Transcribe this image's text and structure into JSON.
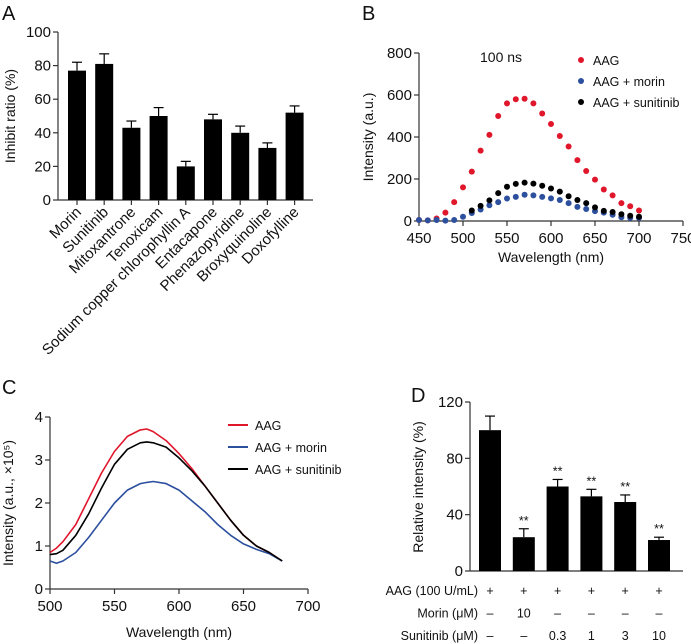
{
  "chart_data": [
    {
      "panel": "A",
      "type": "bar",
      "title": "",
      "xlabel": "",
      "ylabel": "Inhibit ratio (%)",
      "ylim": [
        0,
        100
      ],
      "yticks": [
        0,
        20,
        40,
        60,
        80,
        100
      ],
      "categories": [
        "Morin",
        "Sunitinib",
        "Mitoxantrone",
        "Tenoxicam",
        "Sodium copper chlorophyllin A",
        "Entacapone",
        "Phenazopyridine",
        "Broxyquinoline",
        "Doxofylline"
      ],
      "values": [
        77,
        81,
        43,
        50,
        20,
        48,
        40,
        31,
        52
      ],
      "errors": [
        5,
        6,
        4,
        5,
        3,
        3,
        4,
        3,
        4
      ],
      "color": "#000000"
    },
    {
      "panel": "B",
      "type": "scatter",
      "annotation": "100  ns",
      "xlabel": "Wavelength (nm)",
      "ylabel": "Intensity (a.u.)",
      "xlim": [
        450,
        750
      ],
      "ylim": [
        0,
        800
      ],
      "xticks": [
        450,
        500,
        550,
        600,
        650,
        700,
        750
      ],
      "yticks": [
        0,
        200,
        400,
        600,
        800
      ],
      "legend": "top-right",
      "x": [
        450,
        460,
        470,
        480,
        490,
        500,
        510,
        520,
        530,
        540,
        550,
        560,
        570,
        580,
        590,
        600,
        610,
        620,
        630,
        640,
        650,
        660,
        670,
        680,
        690,
        700
      ],
      "series": [
        {
          "name": "AAG",
          "color": "#e0162b",
          "values": [
            5,
            3,
            12,
            40,
            90,
            160,
            235,
            335,
            410,
            500,
            560,
            580,
            582,
            560,
            512,
            462,
            405,
            355,
            290,
            238,
            197,
            150,
            122,
            85,
            70,
            50
          ]
        },
        {
          "name": "AAG + morin",
          "color": "#2c4f9e",
          "values": [
            5,
            3,
            5,
            2,
            5,
            20,
            38,
            55,
            75,
            90,
            107,
            115,
            125,
            122,
            115,
            108,
            100,
            85,
            67,
            57,
            47,
            40,
            30,
            18,
            15,
            15
          ]
        },
        {
          "name": "AAG + sunitinib",
          "color": "#000000",
          "values": [
            null,
            null,
            null,
            null,
            null,
            null,
            50,
            72,
            98,
            133,
            163,
            177,
            183,
            178,
            168,
            155,
            140,
            118,
            100,
            85,
            65,
            48,
            43,
            32,
            25,
            20
          ]
        }
      ]
    },
    {
      "panel": "C",
      "type": "line",
      "xlabel": "Wavelength (nm)",
      "ylabel": "Intensity (a.u., ×10⁵)",
      "xlim": [
        500,
        700
      ],
      "ylim": [
        0,
        4
      ],
      "xticks": [
        500,
        550,
        600,
        650,
        700
      ],
      "yticks": [
        0,
        1,
        2,
        3,
        4
      ],
      "legend": "top-right",
      "x": [
        500,
        505,
        510,
        520,
        530,
        540,
        550,
        560,
        570,
        575,
        580,
        590,
        600,
        610,
        620,
        630,
        640,
        650,
        660,
        670,
        680
      ],
      "series": [
        {
          "name": "AAG",
          "color": "#e0162b",
          "values": [
            0.85,
            0.95,
            1.1,
            1.5,
            2.1,
            2.7,
            3.2,
            3.55,
            3.7,
            3.72,
            3.66,
            3.45,
            3.15,
            2.8,
            2.4,
            2.0,
            1.6,
            1.25,
            1.0,
            0.85,
            0.65
          ]
        },
        {
          "name": "AAG + morin",
          "color": "#2c4f9e",
          "values": [
            0.65,
            0.6,
            0.65,
            0.85,
            1.2,
            1.6,
            2.0,
            2.3,
            2.45,
            2.48,
            2.5,
            2.45,
            2.3,
            2.05,
            1.8,
            1.5,
            1.25,
            1.05,
            0.92,
            0.82,
            0.65
          ]
        },
        {
          "name": "AAG + sunitinib",
          "color": "#000000",
          "values": [
            0.8,
            0.82,
            0.9,
            1.25,
            1.75,
            2.35,
            2.9,
            3.25,
            3.4,
            3.42,
            3.4,
            3.3,
            3.05,
            2.75,
            2.4,
            2.0,
            1.6,
            1.25,
            1.0,
            0.85,
            0.65
          ]
        }
      ]
    },
    {
      "panel": "D",
      "type": "bar",
      "ylabel": "Relative intensity (%)",
      "ylim": [
        0,
        120
      ],
      "yticks": [
        0,
        40,
        80,
        120
      ],
      "values": [
        100,
        24,
        60,
        53,
        49,
        22
      ],
      "errors": [
        10,
        6,
        5,
        5,
        5,
        2
      ],
      "significance": [
        "",
        "**",
        "**",
        "**",
        "**",
        "**"
      ],
      "conditions": [
        {
          "label": "AAG (100 U/mL)",
          "values": [
            "+",
            "+",
            "+",
            "+",
            "+",
            "+"
          ]
        },
        {
          "label": "Morin (μM)",
          "values": [
            "–",
            "10",
            "–",
            "–",
            "–",
            "–"
          ]
        },
        {
          "label": "Sunitinib (μM)",
          "values": [
            "–",
            "–",
            "0.3",
            "1",
            "3",
            "10"
          ]
        }
      ],
      "color": "#000000"
    }
  ]
}
